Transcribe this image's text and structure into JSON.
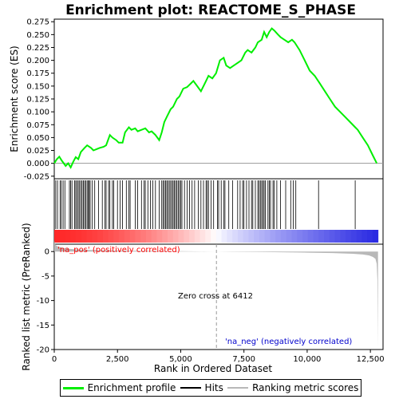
{
  "title": "Enrichment plot: REACTOME_S_PHASE",
  "colors": {
    "enrichment_line": "#00ee00",
    "hits": "#000000",
    "ranking_fill": "#b8b8b8",
    "zero_cross_line": "#999999",
    "pos_label": "#ff0000",
    "neg_label": "#0000cc"
  },
  "chart_data": [
    {
      "type": "line",
      "name": "enrichment-profile",
      "ylabel": "Enrichment score (ES)",
      "xlim": [
        0,
        13000
      ],
      "ylim": [
        -0.03,
        0.28
      ],
      "yticks": [
        "-0.025",
        "0.000",
        "0.025",
        "0.050",
        "0.075",
        "0.100",
        "0.125",
        "0.150",
        "0.175",
        "0.200",
        "0.225",
        "0.250",
        "0.275"
      ],
      "ytick_values": [
        -0.025,
        0,
        0.025,
        0.05,
        0.075,
        0.1,
        0.125,
        0.15,
        0.175,
        0.2,
        0.225,
        0.25,
        0.275
      ],
      "x": [
        0,
        100,
        200,
        300,
        450,
        550,
        650,
        750,
        850,
        950,
        1050,
        1200,
        1300,
        1450,
        1550,
        1700,
        1800,
        1950,
        2050,
        2200,
        2300,
        2450,
        2550,
        2700,
        2800,
        2950,
        3050,
        3200,
        3300,
        3450,
        3600,
        3750,
        3850,
        4000,
        4150,
        4250,
        4350,
        4450,
        4600,
        4700,
        4850,
        4950,
        5100,
        5250,
        5400,
        5500,
        5650,
        5800,
        5900,
        6000,
        6100,
        6250,
        6400,
        6550,
        6700,
        6800,
        6950,
        7100,
        7250,
        7400,
        7550,
        7650,
        7800,
        7950,
        8050,
        8200,
        8300,
        8400,
        8500,
        8600,
        8700,
        8850,
        8950,
        9100,
        9250,
        9400,
        9500,
        9700,
        9900,
        10100,
        10300,
        10500,
        10700,
        10900,
        11100,
        11300,
        11500,
        11700,
        11900,
        12000,
        12200,
        12400,
        12600,
        12750
      ],
      "y": [
        0.0,
        0.008,
        0.013,
        0.005,
        -0.005,
        0.0,
        -0.008,
        0.003,
        0.012,
        0.008,
        0.022,
        0.03,
        0.035,
        0.03,
        0.025,
        0.028,
        0.03,
        0.032,
        0.035,
        0.055,
        0.05,
        0.045,
        0.04,
        0.04,
        0.06,
        0.07,
        0.065,
        0.068,
        0.062,
        0.065,
        0.068,
        0.06,
        0.062,
        0.055,
        0.045,
        0.06,
        0.08,
        0.09,
        0.105,
        0.11,
        0.125,
        0.13,
        0.145,
        0.148,
        0.155,
        0.16,
        0.15,
        0.14,
        0.15,
        0.16,
        0.17,
        0.165,
        0.175,
        0.2,
        0.205,
        0.19,
        0.185,
        0.19,
        0.195,
        0.2,
        0.215,
        0.22,
        0.215,
        0.225,
        0.235,
        0.24,
        0.255,
        0.245,
        0.255,
        0.262,
        0.258,
        0.25,
        0.245,
        0.24,
        0.235,
        0.24,
        0.235,
        0.22,
        0.2,
        0.18,
        0.17,
        0.155,
        0.14,
        0.125,
        0.11,
        0.1,
        0.09,
        0.08,
        0.07,
        0.065,
        0.05,
        0.035,
        0.015,
        0.0
      ]
    },
    {
      "type": "hits",
      "name": "hits",
      "xlim": [
        0,
        13000
      ],
      "positions": [
        60,
        130,
        230,
        280,
        350,
        420,
        600,
        650,
        700,
        800,
        850,
        900,
        950,
        1000,
        1050,
        1100,
        1150,
        1200,
        1250,
        1300,
        1350,
        1380,
        1420,
        1500,
        1600,
        1750,
        1900,
        2000,
        2050,
        2150,
        2200,
        2300,
        2350,
        2500,
        2600,
        2700,
        2850,
        2950,
        3000,
        3200,
        3300,
        3450,
        3550,
        3600,
        3700,
        3800,
        3900,
        4000,
        4150,
        4250,
        4300,
        4350,
        4400,
        4450,
        4500,
        4550,
        4600,
        4650,
        4700,
        4750,
        4800,
        4850,
        4900,
        4950,
        5000,
        5050,
        5150,
        5250,
        5350,
        5450,
        5550,
        5700,
        5800,
        5900,
        6000,
        6050,
        6100,
        6200,
        6300,
        6450,
        6500,
        6600,
        6700,
        6750,
        6900,
        7050,
        7250,
        7350,
        7450,
        7500,
        7600,
        7700,
        7800,
        7850,
        7950,
        8050,
        8100,
        8150,
        8200,
        8250,
        8300,
        8350,
        8450,
        8500,
        8550,
        8650,
        8700,
        8800,
        8950,
        9150,
        9350,
        9450,
        9550,
        10450,
        11900
      ]
    },
    {
      "type": "area",
      "name": "ranked-list-metric",
      "ylabel": "Ranked list metric (PreRanked)",
      "xlabel": "Rank in Ordered Dataset",
      "xlim": [
        0,
        13000
      ],
      "ylim": [
        -20,
        1.5
      ],
      "xticks": [
        "0",
        "2,500",
        "5,000",
        "7,500",
        "10,000",
        "12,500"
      ],
      "xtick_values": [
        0,
        2500,
        5000,
        7500,
        10000,
        12500
      ],
      "yticks": [
        "0",
        "-5",
        "-10",
        "-15",
        "-20"
      ],
      "ytick_values": [
        0,
        -5,
        -10,
        -15,
        -20
      ],
      "x": [
        0,
        30,
        80,
        150,
        300,
        500,
        800,
        1200,
        2000,
        3000,
        4000,
        5000,
        6000,
        6412,
        7000,
        8000,
        9000,
        10000,
        11000,
        11800,
        12200,
        12450,
        12600,
        12700,
        12750,
        12780,
        12800
      ],
      "y": [
        2.2,
        1.6,
        1.2,
        1.0,
        0.8,
        0.6,
        0.45,
        0.35,
        0.25,
        0.17,
        0.12,
        0.07,
        0.02,
        0.0,
        -0.05,
        -0.1,
        -0.15,
        -0.22,
        -0.3,
        -0.45,
        -0.6,
        -0.8,
        -1.1,
        -1.5,
        -2.5,
        -6.0,
        -19.5
      ],
      "zero_cross_label": "Zero cross at 6412",
      "zero_cross_x": 6412,
      "pos_label": "'na_pos' (positively correlated)",
      "neg_label": "'na_neg' (negatively correlated)"
    }
  ],
  "legend": [
    {
      "label": "Enrichment profile",
      "color": "#00ee00"
    },
    {
      "label": "Hits",
      "color": "#000000"
    },
    {
      "label": "Ranking metric scores",
      "color": "#b8b8b8"
    }
  ]
}
